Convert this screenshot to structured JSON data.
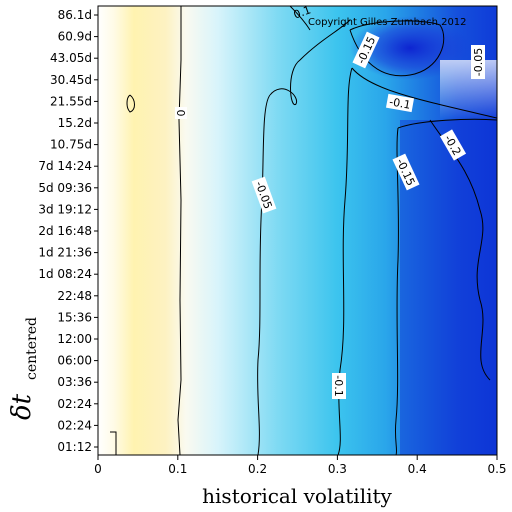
{
  "chart_data": {
    "type": "heatmap",
    "copyright": "Copyright Gilles Zumbach 2012",
    "xlabel": "historical volatility",
    "ylabel": "δt",
    "ylabel_subscript": "centered",
    "xlim": [
      0,
      0.5
    ],
    "x_ticks": [
      "0",
      "0.1",
      "0.2",
      "0.3",
      "0.4",
      "0.5"
    ],
    "y_ticks": [
      "01:12",
      "02:24",
      "02:24",
      "03:36",
      "06:00",
      "12:00",
      "15:36",
      "22:48",
      "1d 08:24",
      "1d 21:36",
      "2d 16:48",
      "3d 19:12",
      "5d 09:36",
      "7d 14:24",
      "10.75d",
      "15.2d",
      "21.55d",
      "30.45d",
      "43.05d",
      "60.9d",
      "86.1d"
    ],
    "contour_labels": [
      "0",
      "-0.05",
      "-0.1",
      "-0.1",
      "-0.15",
      "-0.15",
      "-0.05",
      "-0.2",
      "0.1"
    ],
    "colors": {
      "low_vol": "#fff5b8",
      "mid": "#ffffff",
      "cyan": "#3cc9ee",
      "blue": "#1e6be0",
      "deep_blue": "#0a2fd8"
    }
  }
}
